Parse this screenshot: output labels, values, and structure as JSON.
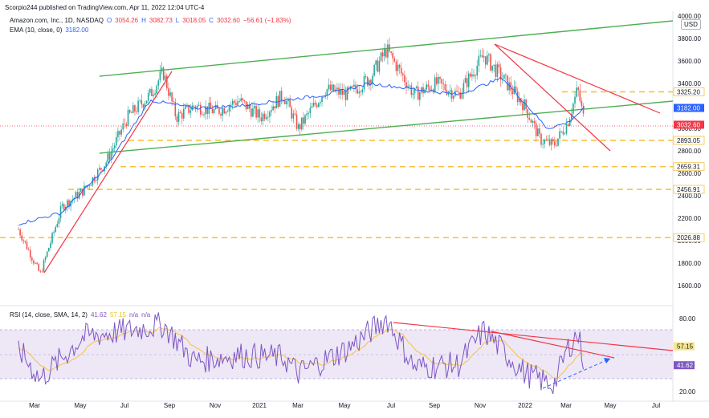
{
  "header": {
    "published": "Scorpio244 published on TradingView.com, Apr 11, 2022 12:04 UTC-4",
    "symbol": "Amazon.com, Inc., 1D, NASDAQ",
    "o_label": "O",
    "o": "3054.26",
    "h_label": "H",
    "h": "3082.73",
    "l_label": "L",
    "l": "3018.05",
    "c_label": "C",
    "c": "3032.60",
    "change": "−56.61 (−1.83%)",
    "ema_label": "EMA (10, close, 0)",
    "ema_value": "3182.00",
    "rsi_label": "RSI (14, close, SMA, 14, 2)",
    "rsi_value": "41.62",
    "rsi_sma_value": "57.15",
    "na1": "n/a",
    "na2": "n/a",
    "currency": "USD"
  },
  "price_axis": {
    "ticks": [
      "4000.00",
      "3800.00",
      "3600.00",
      "3400.00",
      "3000.00",
      "2800.00",
      "2600.00",
      "2400.00",
      "2200.00",
      "2000.00",
      "1800.00",
      "1600.00"
    ],
    "tags": [
      {
        "value": "3325.20",
        "color": "#ffffff",
        "text": "#131722",
        "border": "#f6c343"
      },
      {
        "value": "3182.00",
        "color": "#2962ff",
        "text": "#ffffff"
      },
      {
        "value": "3032.60",
        "color": "#f23645",
        "text": "#ffffff"
      },
      {
        "value": "2893.05",
        "color": "#ffffff",
        "text": "#131722",
        "border": "#f6c343"
      },
      {
        "value": "2659.31",
        "color": "#ffffff",
        "text": "#131722",
        "border": "#f6c343"
      },
      {
        "value": "2456.91",
        "color": "#ffffff",
        "text": "#131722",
        "border": "#f6c343"
      },
      {
        "value": "2026.88",
        "color": "#ffffff",
        "text": "#131722",
        "border": "#f6c343"
      }
    ]
  },
  "rsi_axis": {
    "ticks": [
      "80.00",
      "20.00"
    ],
    "tags": [
      {
        "value": "57.15",
        "color": "#f6e58d",
        "text": "#131722"
      },
      {
        "value": "41.62",
        "color": "#7e57c2",
        "text": "#ffffff"
      }
    ]
  },
  "time_axis": [
    "Mar",
    "May",
    "Jul",
    "Sep",
    "Nov",
    "2021",
    "Mar",
    "May",
    "Jul",
    "Sep",
    "Nov",
    "2022",
    "Mar",
    "May",
    "Jul"
  ],
  "colors": {
    "up": "#26a69a",
    "down": "#ef5350",
    "ema": "#2962ff",
    "green_line": "#4caf50",
    "red_line": "#f23645",
    "support": "#f6c343",
    "rsi": "#7e57c2",
    "rsi_sma": "#f6c343",
    "rsi_band": "#ede7f6"
  },
  "chart_data": {
    "type": "line",
    "series": [
      {
        "name": "Amazon.com, Inc., 1D, NASDAQ",
        "x": [
          "2020-02-15",
          "2020-03-16",
          "2020-04-15",
          "2020-05-15",
          "2020-06-15",
          "2020-07-15",
          "2020-08-15",
          "2020-09-02",
          "2020-09-20",
          "2020-10-15",
          "2020-11-15",
          "2020-12-15",
          "2021-01-15",
          "2021-02-15",
          "2021-03-08",
          "2021-04-15",
          "2021-05-15",
          "2021-06-15",
          "2021-07-08",
          "2021-08-15",
          "2021-09-15",
          "2021-10-15",
          "2021-11-19",
          "2021-12-15",
          "2022-01-15",
          "2022-02-05",
          "2022-02-24",
          "2022-03-15",
          "2022-03-29",
          "2022-04-08"
        ],
        "values": [
          2100,
          1700,
          2300,
          2450,
          2700,
          3100,
          3300,
          3500,
          3100,
          3200,
          3150,
          3250,
          3100,
          3300,
          3000,
          3350,
          3300,
          3450,
          3700,
          3300,
          3400,
          3300,
          3650,
          3450,
          3200,
          2900,
          2850,
          3050,
          3350,
          3032.6
        ]
      },
      {
        "name": "EMA (10, close, 0)",
        "x": [
          "2020-02-15",
          "2020-04-15",
          "2020-06-15",
          "2020-08-15",
          "2020-10-15",
          "2020-12-15",
          "2021-02-15",
          "2021-04-15",
          "2021-06-15",
          "2021-08-15",
          "2021-10-15",
          "2021-12-15",
          "2022-02-15",
          "2022-03-15",
          "2022-04-08"
        ],
        "values": [
          2150,
          2250,
          2650,
          3250,
          3180,
          3200,
          3250,
          3300,
          3400,
          3350,
          3300,
          3450,
          3000,
          3050,
          3182
        ]
      },
      {
        "name": "RSI (14, close, SMA, 14, 2)",
        "x": [
          "2020-02-15",
          "2020-03-16",
          "2020-05-15",
          "2020-07-15",
          "2020-09-02",
          "2020-10-15",
          "2020-12-15",
          "2021-02-15",
          "2021-03-08",
          "2021-05-15",
          "2021-07-08",
          "2021-08-15",
          "2021-10-15",
          "2021-11-19",
          "2022-01-15",
          "2022-02-24",
          "2022-03-15",
          "2022-03-29",
          "2022-04-08"
        ],
        "values": [
          55,
          30,
          65,
          70,
          75,
          45,
          50,
          48,
          35,
          55,
          80,
          40,
          42,
          70,
          35,
          25,
          55,
          68,
          41.62
        ]
      }
    ],
    "ylim": [
      1500,
      4050
    ],
    "rsi_ylim": [
      15,
      90
    ],
    "grid": false,
    "support_levels": [
      3325.2,
      2893.05,
      2659.31,
      2456.91,
      2026.88
    ]
  }
}
